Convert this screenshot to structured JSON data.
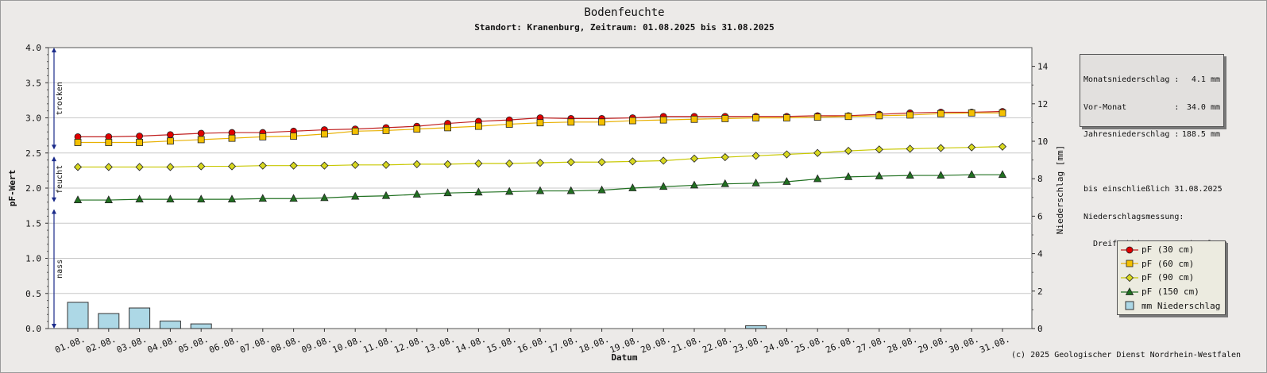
{
  "chart_data": {
    "type": "line",
    "title": "Bodenfeuchte",
    "subtitle": "Standort: Kranenburg, Zeitraum: 01.08.2025 bis 31.08.2025",
    "xlabel": "Datum",
    "ylabel": "pF-Wert",
    "y2label": "Niederschlag [mm]",
    "ylim": [
      0,
      4.0
    ],
    "y2lim": [
      0,
      15
    ],
    "yticks": [
      "0.0",
      "0.5",
      "1.0",
      "1.5",
      "2.0",
      "2.5",
      "3.0",
      "3.5",
      "4.0"
    ],
    "y2ticks": [
      "0",
      "2",
      "4",
      "6",
      "8",
      "10",
      "12",
      "14"
    ],
    "categories": [
      "01.08.",
      "02.08.",
      "03.08.",
      "04.08.",
      "05.08.",
      "06.08.",
      "07.08.",
      "08.08.",
      "09.08.",
      "10.08.",
      "11.08.",
      "12.08.",
      "13.08.",
      "14.08.",
      "15.08.",
      "16.08.",
      "17.08.",
      "18.08.",
      "19.08.",
      "20.08.",
      "21.08.",
      "22.08.",
      "23.08.",
      "24.08.",
      "25.08.",
      "26.08.",
      "27.08.",
      "28.08.",
      "29.08.",
      "30.08.",
      "31.08."
    ],
    "zones": [
      {
        "label": "trocken",
        "from": 2.55,
        "to": 4.0
      },
      {
        "label": "feucht",
        "from": 1.8,
        "to": 2.45
      },
      {
        "label": "nass",
        "from": 0.0,
        "to": 1.7
      }
    ],
    "series": [
      {
        "name": "pF (30 cm)",
        "color": "#e00000",
        "line_color": "#c02020",
        "marker": "circle",
        "values": [
          2.73,
          2.73,
          2.74,
          2.76,
          2.78,
          2.79,
          2.79,
          2.81,
          2.83,
          2.84,
          2.86,
          2.88,
          2.92,
          2.95,
          2.97,
          3.0,
          2.99,
          2.99,
          3.0,
          3.02,
          3.02,
          3.02,
          3.02,
          3.02,
          3.03,
          3.03,
          3.05,
          3.07,
          3.08,
          3.08,
          3.09
        ]
      },
      {
        "name": "pF (60 cm)",
        "color": "#f4c000",
        "line_color": "#e8b000",
        "marker": "square",
        "values": [
          2.65,
          2.65,
          2.65,
          2.67,
          2.69,
          2.71,
          2.73,
          2.74,
          2.77,
          2.81,
          2.82,
          2.84,
          2.86,
          2.88,
          2.91,
          2.93,
          2.94,
          2.94,
          2.96,
          2.97,
          2.98,
          2.99,
          3.0,
          3.0,
          3.01,
          3.02,
          3.03,
          3.04,
          3.06,
          3.07,
          3.07
        ]
      },
      {
        "name": "pF (90 cm)",
        "color": "#d8d820",
        "line_color": "#c8c800",
        "marker": "diamond",
        "values": [
          2.3,
          2.3,
          2.3,
          2.3,
          2.31,
          2.31,
          2.32,
          2.32,
          2.32,
          2.33,
          2.33,
          2.34,
          2.34,
          2.35,
          2.35,
          2.36,
          2.37,
          2.37,
          2.38,
          2.39,
          2.42,
          2.44,
          2.46,
          2.48,
          2.5,
          2.53,
          2.55,
          2.56,
          2.57,
          2.58,
          2.59
        ]
      },
      {
        "name": "pF (150 cm)",
        "color": "#207020",
        "line_color": "#207020",
        "marker": "triangle",
        "values": [
          1.83,
          1.83,
          1.84,
          1.84,
          1.84,
          1.84,
          1.85,
          1.85,
          1.86,
          1.88,
          1.89,
          1.91,
          1.93,
          1.94,
          1.95,
          1.96,
          1.96,
          1.97,
          2.0,
          2.02,
          2.04,
          2.06,
          2.07,
          2.09,
          2.13,
          2.16,
          2.17,
          2.18,
          2.18,
          2.19,
          2.19
        ]
      },
      {
        "name": "mm  Niederschlag",
        "color": "#add8e6",
        "type": "bar",
        "axis": "y2",
        "values": [
          1.4,
          0.8,
          1.1,
          0.4,
          0.25,
          0,
          0,
          0,
          0,
          0,
          0,
          0,
          0,
          0,
          0,
          0,
          0,
          0,
          0,
          0,
          0,
          0,
          0.15,
          0,
          0,
          0,
          0,
          0,
          0,
          0,
          0
        ]
      }
    ],
    "grid": true,
    "legend_position": "bottom-right"
  },
  "info_box": {
    "lines": [
      {
        "label": "Monatsniederschlag :",
        "value": "4.1 mm"
      },
      {
        "label": "Vor-Monat          :",
        "value": "34.0 mm"
      },
      {
        "label": "Jahresniederschlag :",
        "value": "188.5 mm"
      }
    ],
    "text": [
      "bis einschließlich 31.08.2025",
      "Niederschlagsmessung:",
      "  Dreifachkippwaage, Mittelung"
    ]
  },
  "copyright": "(c) 2025 Geologischer Dienst Nordrhein-Westfalen"
}
